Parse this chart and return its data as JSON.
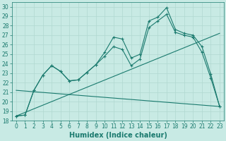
{
  "xlabel": "Humidex (Indice chaleur)",
  "xlim": [
    -0.5,
    23.5
  ],
  "ylim": [
    18,
    30.5
  ],
  "xticks": [
    0,
    1,
    2,
    3,
    4,
    5,
    6,
    7,
    8,
    9,
    10,
    11,
    12,
    13,
    14,
    15,
    16,
    17,
    18,
    19,
    20,
    21,
    22,
    23
  ],
  "yticks": [
    18,
    19,
    20,
    21,
    22,
    23,
    24,
    25,
    26,
    27,
    28,
    29,
    30
  ],
  "bg_color": "#c8eae4",
  "grid_color": "#b0d8d0",
  "line_color": "#1a7a6e",
  "line1_x": [
    0,
    1,
    2,
    3,
    4,
    5,
    6,
    7,
    8,
    9,
    10,
    11,
    12,
    13,
    14,
    15,
    16,
    17,
    18,
    19,
    20,
    21,
    22,
    23
  ],
  "line1_y": [
    18.5,
    18.6,
    21.2,
    22.8,
    23.8,
    23.2,
    22.2,
    22.3,
    23.1,
    23.9,
    25.2,
    26.8,
    26.6,
    24.6,
    25.0,
    28.5,
    28.9,
    29.9,
    27.6,
    27.2,
    27.0,
    25.8,
    22.9,
    19.5
  ],
  "line2_x": [
    0,
    1,
    2,
    3,
    4,
    5,
    6,
    7,
    8,
    9,
    10,
    11,
    12,
    13,
    14,
    15,
    16,
    17,
    18,
    19,
    20,
    21,
    22,
    23
  ],
  "line2_y": [
    18.5,
    18.6,
    21.2,
    22.8,
    23.8,
    23.2,
    22.2,
    22.3,
    23.1,
    23.9,
    24.8,
    25.8,
    25.5,
    23.8,
    24.5,
    27.8,
    28.5,
    29.2,
    27.3,
    27.0,
    26.8,
    25.2,
    22.5,
    19.5
  ],
  "line3_x": [
    0,
    23
  ],
  "line3_y": [
    18.5,
    27.2
  ],
  "line4_x": [
    0,
    23
  ],
  "line4_y": [
    21.2,
    19.5
  ],
  "tick_fontsize": 5.5,
  "xlabel_fontsize": 7,
  "linewidth": 0.8,
  "markersize": 3,
  "marker": "+"
}
